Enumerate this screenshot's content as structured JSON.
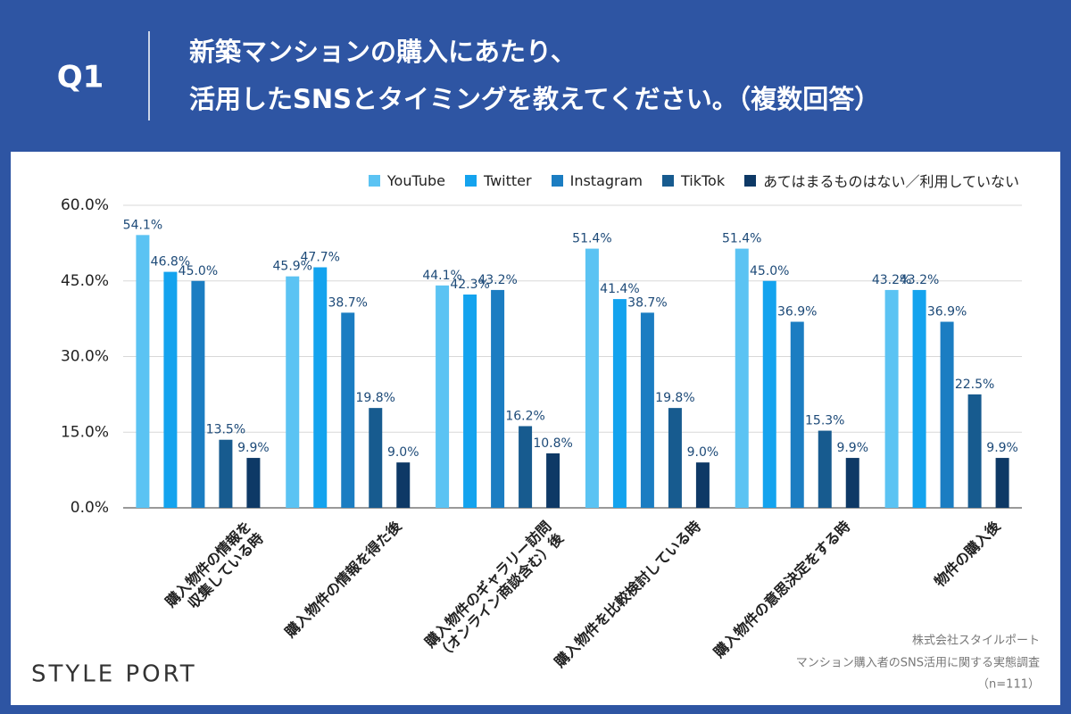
{
  "chart_data": {
    "type": "bar",
    "title_prefix": "Q1",
    "title": [
      "新築マンションの購入にあたり、",
      "活用したSNSとタイミングを教えてください。（複数回答）"
    ],
    "categories": [
      "購入物件の情報を\n収集している時",
      "購入物件の情報を得た後",
      "購入物件のギャラリー訪問\n（オンライン商談含む）後",
      "購入物件を比較検討している時",
      "購入物件の意思決定をする時",
      "物件の購入後"
    ],
    "series": [
      {
        "name": "YouTube",
        "color": "#5bc3f3",
        "values": [
          54.1,
          45.9,
          44.1,
          51.4,
          51.4,
          43.2
        ],
        "value_labels": [
          "54.1%",
          "45.9%",
          "44.1%",
          "51.4%",
          "51.4%",
          "43.2%"
        ]
      },
      {
        "name": "Twitter",
        "color": "#14a3ee",
        "values": [
          46.8,
          47.7,
          42.3,
          41.4,
          45.0,
          43.2
        ],
        "value_labels": [
          "46.8%",
          "47.7%",
          "42.3%",
          "41.4%",
          "45.0%",
          "43.2%"
        ]
      },
      {
        "name": "Instagram",
        "color": "#1b7dc2",
        "values": [
          45.0,
          38.7,
          43.2,
          38.7,
          36.9,
          36.9
        ],
        "value_labels": [
          "45.0%",
          "38.7%",
          "43.2%",
          "38.7%",
          "36.9%",
          "36.9%"
        ]
      },
      {
        "name": "TikTok",
        "color": "#175b8f",
        "values": [
          13.5,
          19.8,
          16.2,
          19.8,
          15.3,
          22.5
        ],
        "value_labels": [
          "13.5%",
          "19.8%",
          "16.2%",
          "19.8%",
          "15.3%",
          "22.5%"
        ]
      },
      {
        "name": "あてはまるものはない／利用していない",
        "color": "#0e3966",
        "values": [
          9.9,
          9.0,
          10.8,
          9.0,
          9.9,
          9.9
        ],
        "value_labels": [
          "9.9%",
          "9.0%",
          "10.8%",
          "9.0%",
          "9.9%",
          "9.9%"
        ]
      }
    ],
    "ylim": [
      0,
      60
    ],
    "yticks": [
      {
        "value": 0,
        "label": "0.0%"
      },
      {
        "value": 15,
        "label": "15.0%"
      },
      {
        "value": 30,
        "label": "30.0%"
      },
      {
        "value": 45,
        "label": "45.0%"
      },
      {
        "value": 60,
        "label": "60.0%"
      }
    ],
    "grid": true,
    "legend": "top-right",
    "source": [
      "株式会社スタイルポート",
      "マンション購入者のSNS活用に関する実態調査",
      "（n=111）"
    ],
    "logo": "STYLE PORT"
  }
}
